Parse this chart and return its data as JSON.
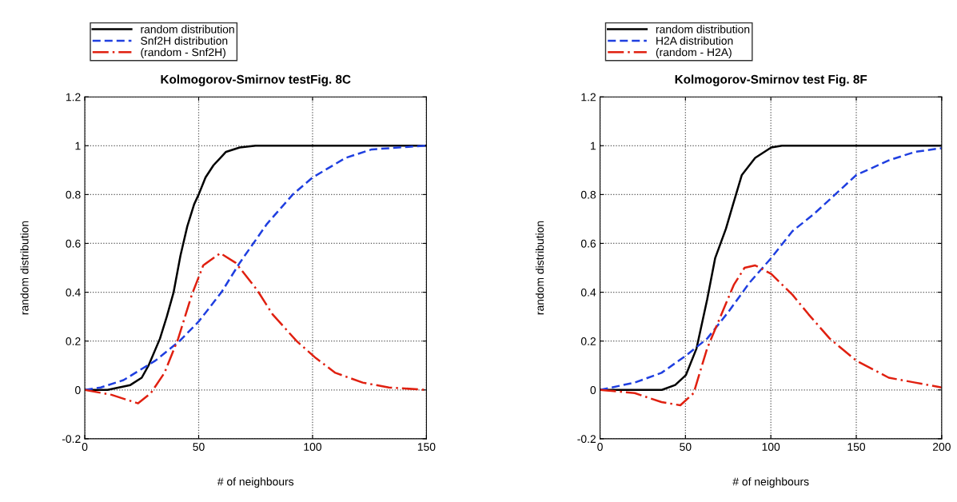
{
  "chart_data": [
    {
      "type": "line",
      "title": "Kolmogorov-Smirnov testFig. 8C",
      "xlabel": "# of neighbours",
      "ylabel": "random distribution",
      "xlim": [
        0,
        150
      ],
      "xticks": [
        0,
        50,
        100,
        150
      ],
      "ylim": [
        -0.2,
        1.2
      ],
      "yticks": [
        -0.2,
        0,
        0.2,
        0.4,
        0.6,
        0.8,
        1,
        1.2
      ],
      "grid": true,
      "legend": "top left",
      "series": [
        {
          "name": "random distribution",
          "color": "#000000",
          "line_style": "solid",
          "x": [
            0,
            10,
            20,
            25,
            28,
            33,
            36,
            39,
            42,
            45,
            48,
            50,
            53,
            56.5,
            60,
            62,
            68,
            75,
            150
          ],
          "values": [
            0,
            0,
            0.02,
            0.05,
            0.1,
            0.21,
            0.3,
            0.4,
            0.55,
            0.67,
            0.76,
            0.8,
            0.87,
            0.92,
            0.955,
            0.975,
            0.993,
            1,
            1
          ]
        },
        {
          "name": "Snf2H distribution",
          "color": "#1f3fe0",
          "line_style": "dashed",
          "x": [
            0,
            7,
            17,
            31,
            41.6,
            50,
            60,
            68,
            80,
            91.3,
            100,
            114.5,
            126,
            149.5
          ],
          "values": [
            0,
            0.01,
            0.04,
            0.12,
            0.2,
            0.28,
            0.4,
            0.52,
            0.68,
            0.8,
            0.87,
            0.95,
            0.985,
            1
          ]
        },
        {
          "name": "(random - Snf2H)",
          "color": "#e02010",
          "line_style": "dashdot",
          "x": [
            0,
            11.7,
            23.4,
            29,
            35,
            41,
            47,
            52,
            59.5,
            66.3,
            75.6,
            82.4,
            93,
            101.5,
            110,
            122,
            133.5,
            150
          ],
          "values": [
            0,
            -0.02,
            -0.055,
            -0.013,
            0.07,
            0.21,
            0.39,
            0.51,
            0.56,
            0.52,
            0.41,
            0.31,
            0.2,
            0.13,
            0.07,
            0.03,
            0.01,
            0
          ]
        }
      ]
    },
    {
      "type": "line",
      "title": "Kolmogorov-Smirnov test Fig. 8F",
      "xlabel": "# of neighbours",
      "ylabel": "random distribution",
      "xlim": [
        0,
        200
      ],
      "xticks": [
        0,
        50,
        100,
        150,
        200
      ],
      "ylim": [
        -0.2,
        1.2
      ],
      "yticks": [
        -0.2,
        0,
        0.2,
        0.4,
        0.6,
        0.8,
        1,
        1.2
      ],
      "grid": true,
      "legend": "top left",
      "series": [
        {
          "name": "random distribution",
          "color": "#000000",
          "line_style": "solid",
          "x": [
            0,
            36.2,
            44,
            50.2,
            56.5,
            62.7,
            67.4,
            73.7,
            78.3,
            83,
            90.8,
            100.2,
            106.5,
            200
          ],
          "values": [
            0,
            0,
            0.02,
            0.06,
            0.17,
            0.37,
            0.54,
            0.66,
            0.77,
            0.88,
            0.95,
            0.993,
            1,
            1
          ]
        },
        {
          "name": "H2A distribution",
          "color": "#1f3fe0",
          "line_style": "dashed",
          "x": [
            0,
            20.3,
            36,
            50.2,
            62.7,
            75.2,
            87.6,
            100.2,
            112.6,
            125.1,
            137.6,
            150,
            169,
            184.5,
            200
          ],
          "values": [
            0,
            0.03,
            0.07,
            0.14,
            0.21,
            0.32,
            0.44,
            0.54,
            0.65,
            0.72,
            0.8,
            0.88,
            0.94,
            0.975,
            0.99
          ]
        },
        {
          "name": "(random - H2A)",
          "color": "#e02010",
          "line_style": "dashdot",
          "x": [
            0,
            20.3,
            36,
            47,
            54.8,
            62.7,
            70.5,
            78.3,
            84.6,
            90.8,
            100.2,
            112.6,
            122,
            134.5,
            150,
            169,
            184.5,
            200
          ],
          "values": [
            0,
            -0.013,
            -0.05,
            -0.063,
            -0.013,
            0.17,
            0.3,
            0.43,
            0.5,
            0.51,
            0.475,
            0.39,
            0.31,
            0.21,
            0.12,
            0.05,
            0.03,
            0.01
          ]
        }
      ]
    }
  ]
}
